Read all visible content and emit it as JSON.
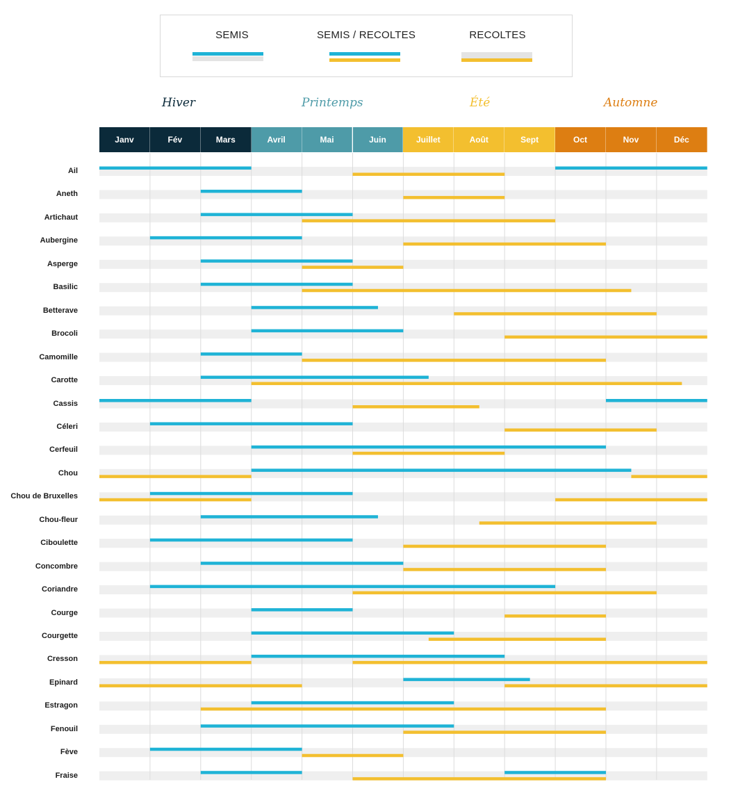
{
  "legend": {
    "items": [
      {
        "label": "SEMIS",
        "type": "semis"
      },
      {
        "label": "SEMIS / RECOLTES",
        "type": "both"
      },
      {
        "label": "RECOLTES",
        "type": "recoltes"
      }
    ]
  },
  "seasons": [
    {
      "label": "Hiver",
      "color": "#0b2a3a"
    },
    {
      "label": "Printemps",
      "color": "#4e9ba8"
    },
    {
      "label": "Été",
      "color": "#f3bf2f"
    },
    {
      "label": "Automne",
      "color": "#dd7e12"
    }
  ],
  "colors": {
    "semis": "#1fb3d6",
    "recoltes": "#f3bf2f",
    "row_stripe": "#efefef",
    "grid_line": "#dcdcdc",
    "hiver": "#0b2a3a",
    "printemps": "#4e9ba8",
    "ete": "#f3bf2f",
    "automne": "#dd7e12"
  },
  "chart_data": {
    "type": "bar",
    "subtype": "gantt",
    "title": "",
    "months": [
      "Janv",
      "Fév",
      "Mars",
      "Avril",
      "Mai",
      "Juin",
      "Juillet",
      "Août",
      "Sept",
      "Oct",
      "Nov",
      "Déc"
    ],
    "month_seasons": [
      "hiver",
      "hiver",
      "hiver",
      "printemps",
      "printemps",
      "printemps",
      "ete",
      "ete",
      "ete",
      "automne",
      "automne",
      "automne"
    ],
    "series": [
      {
        "name": "SEMIS",
        "key": "semis"
      },
      {
        "name": "RECOLTES",
        "key": "recoltes"
      }
    ],
    "units": "months (0 = début janvier, 12 = fin décembre)",
    "plants": [
      {
        "name": "Ail",
        "semis": [
          [
            0,
            3
          ],
          [
            9,
            12
          ]
        ],
        "recoltes": [
          [
            5,
            8
          ]
        ]
      },
      {
        "name": "Aneth",
        "semis": [
          [
            2,
            4
          ]
        ],
        "recoltes": [
          [
            6,
            8
          ]
        ]
      },
      {
        "name": "Artichaut",
        "semis": [
          [
            2,
            5
          ]
        ],
        "recoltes": [
          [
            4,
            9
          ]
        ]
      },
      {
        "name": "Aubergine",
        "semis": [
          [
            1,
            4
          ]
        ],
        "recoltes": [
          [
            6,
            10
          ]
        ]
      },
      {
        "name": "Asperge",
        "semis": [
          [
            2,
            5
          ]
        ],
        "recoltes": [
          [
            4,
            6
          ]
        ]
      },
      {
        "name": "Basilic",
        "semis": [
          [
            2,
            5
          ]
        ],
        "recoltes": [
          [
            4,
            10.5
          ]
        ]
      },
      {
        "name": "Betterave",
        "semis": [
          [
            3,
            5.5
          ]
        ],
        "recoltes": [
          [
            7,
            11
          ]
        ]
      },
      {
        "name": "Brocoli",
        "semis": [
          [
            3,
            6
          ]
        ],
        "recoltes": [
          [
            8,
            12
          ]
        ]
      },
      {
        "name": "Camomille",
        "semis": [
          [
            2,
            4
          ]
        ],
        "recoltes": [
          [
            4,
            10
          ]
        ]
      },
      {
        "name": "Carotte",
        "semis": [
          [
            2,
            6.5
          ]
        ],
        "recoltes": [
          [
            3,
            11.5
          ]
        ]
      },
      {
        "name": "Cassis",
        "semis": [
          [
            0,
            3
          ],
          [
            10,
            12
          ]
        ],
        "recoltes": [
          [
            5,
            7.5
          ]
        ]
      },
      {
        "name": "Céleri",
        "semis": [
          [
            1,
            5
          ]
        ],
        "recoltes": [
          [
            8,
            11
          ]
        ]
      },
      {
        "name": "Cerfeuil",
        "semis": [
          [
            3,
            10
          ]
        ],
        "recoltes": [
          [
            5,
            8
          ]
        ]
      },
      {
        "name": "Chou",
        "semis": [
          [
            3,
            10.5
          ]
        ],
        "recoltes": [
          [
            0,
            3
          ],
          [
            10.5,
            12
          ]
        ]
      },
      {
        "name": "Chou de Bruxelles",
        "semis": [
          [
            1,
            5
          ]
        ],
        "recoltes": [
          [
            0,
            3
          ],
          [
            9,
            12
          ]
        ]
      },
      {
        "name": "Chou-fleur",
        "semis": [
          [
            2,
            5.5
          ]
        ],
        "recoltes": [
          [
            7.5,
            11
          ]
        ]
      },
      {
        "name": "Ciboulette",
        "semis": [
          [
            1,
            5
          ]
        ],
        "recoltes": [
          [
            6,
            10
          ]
        ]
      },
      {
        "name": "Concombre",
        "semis": [
          [
            2,
            6
          ]
        ],
        "recoltes": [
          [
            6,
            10
          ]
        ]
      },
      {
        "name": "Coriandre",
        "semis": [
          [
            1,
            9
          ]
        ],
        "recoltes": [
          [
            5,
            11
          ]
        ]
      },
      {
        "name": "Courge",
        "semis": [
          [
            3,
            5
          ]
        ],
        "recoltes": [
          [
            8,
            10
          ]
        ]
      },
      {
        "name": "Courgette",
        "semis": [
          [
            3,
            7
          ]
        ],
        "recoltes": [
          [
            6.5,
            10
          ]
        ]
      },
      {
        "name": "Cresson",
        "semis": [
          [
            3,
            8
          ]
        ],
        "recoltes": [
          [
            0,
            3
          ],
          [
            5,
            12
          ]
        ]
      },
      {
        "name": "Epinard",
        "semis": [
          [
            6,
            8.5
          ]
        ],
        "recoltes": [
          [
            0,
            4
          ],
          [
            8,
            12
          ]
        ]
      },
      {
        "name": "Estragon",
        "semis": [
          [
            3,
            7
          ]
        ],
        "recoltes": [
          [
            2,
            10
          ]
        ]
      },
      {
        "name": "Fenouil",
        "semis": [
          [
            2,
            7
          ]
        ],
        "recoltes": [
          [
            6,
            10
          ]
        ]
      },
      {
        "name": "Fève",
        "semis": [
          [
            1,
            4
          ]
        ],
        "recoltes": [
          [
            4,
            6
          ]
        ]
      },
      {
        "name": "Fraise",
        "semis": [
          [
            2,
            4
          ],
          [
            8,
            10
          ]
        ],
        "recoltes": [
          [
            5,
            10
          ]
        ]
      }
    ]
  }
}
